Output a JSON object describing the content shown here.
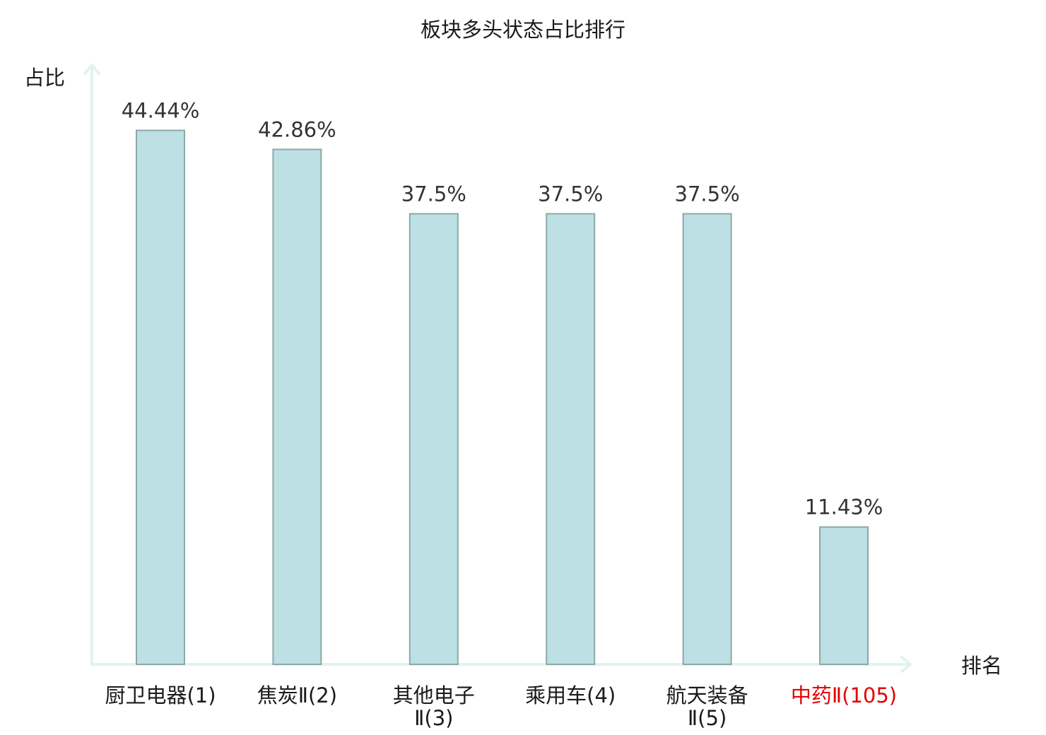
{
  "chart_data": {
    "type": "bar",
    "title": "板块多头状态占比排行",
    "ylabel": "占比",
    "xlabel": "排名",
    "ylim": [
      0,
      50
    ],
    "grid": false,
    "categories": [
      [
        "厨卫电器(1)"
      ],
      [
        "焦炭Ⅱ(2)"
      ],
      [
        "其他电子",
        "Ⅱ(3)"
      ],
      [
        "乘用车(4)"
      ],
      [
        "航天装备",
        "Ⅱ(5)"
      ],
      [
        "中药Ⅱ(105)"
      ]
    ],
    "values": [
      44.44,
      42.86,
      37.5,
      37.5,
      37.5,
      11.43
    ],
    "value_labels": [
      "44.44%",
      "42.86%",
      "37.5%",
      "37.5%",
      "37.5%",
      "11.43%"
    ],
    "highlight_index": 5,
    "colors": {
      "bar_fill": "#bce0e3",
      "bar_stroke": "#8ea8a8",
      "axis": "#e2f2f0",
      "highlight": "#e60000"
    }
  }
}
